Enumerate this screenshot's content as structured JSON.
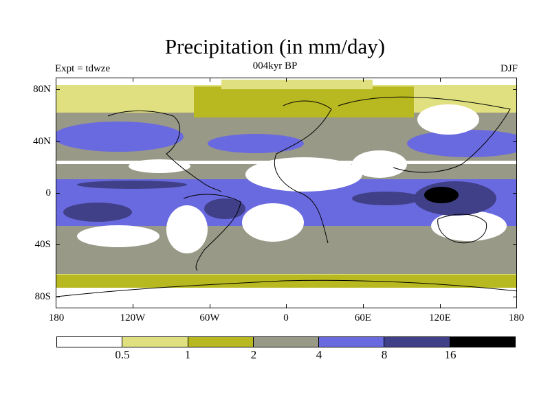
{
  "title": "Precipitation (in mm/day)",
  "experiment_label": "Expt = tdwze",
  "subtitle": "004kyr BP",
  "season": "DJF",
  "y_axis_labels": [
    "80N",
    "40N",
    "0",
    "40S",
    "80S"
  ],
  "x_axis_labels": [
    "180",
    "120W",
    "60W",
    "0",
    "60E",
    "120E",
    "180"
  ],
  "colorbar": {
    "labels": [
      "0.5",
      "1",
      "2",
      "4",
      "8",
      "16"
    ],
    "colors": [
      "#ffffff",
      "#e0e080",
      "#b8b820",
      "#999988",
      "#6a6ae0",
      "#404088",
      "#000000"
    ]
  },
  "map_colors": {
    "level0": "#ffffff",
    "level1": "#e0e080",
    "level2": "#b8b820",
    "level3": "#999988",
    "level4": "#6a6ae0",
    "level5": "#404088",
    "level6": "#000000"
  }
}
